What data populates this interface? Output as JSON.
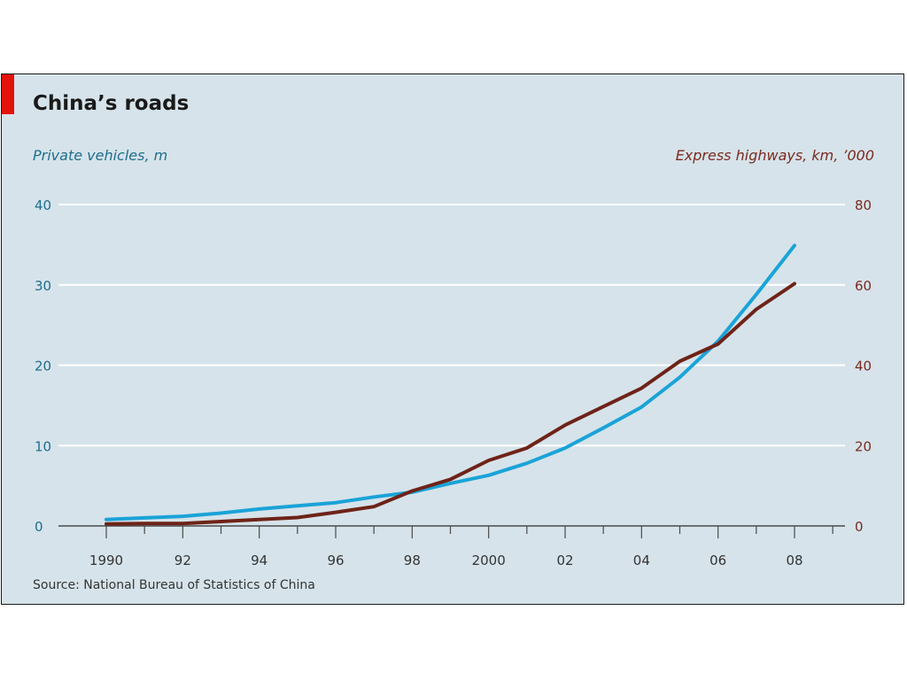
{
  "chart_data": {
    "type": "line",
    "title": "China’s roads",
    "left_axis": {
      "label": "Private vehicles, m",
      "range": [
        0,
        40
      ],
      "ticks": [
        "0",
        "10",
        "20",
        "30",
        "40"
      ],
      "color": "#1f6e8c"
    },
    "right_axis": {
      "label": "Express highways, km, ’000",
      "range": [
        0,
        80
      ],
      "ticks": [
        "0",
        "20",
        "40",
        "60",
        "80"
      ],
      "color": "#7a2a1f"
    },
    "x": [
      1990,
      1991,
      1992,
      1993,
      1994,
      1995,
      1996,
      1997,
      1998,
      1999,
      2000,
      2001,
      2002,
      2003,
      2004,
      2005,
      2006,
      2007,
      2008
    ],
    "x_tick_labels": [
      "1990",
      "92",
      "94",
      "96",
      "98",
      "2000",
      "02",
      "04",
      "06",
      "08"
    ],
    "x_tick_years": [
      1990,
      1992,
      1994,
      1996,
      1998,
      2000,
      2002,
      2004,
      2006,
      2008
    ],
    "series": [
      {
        "axis": "left",
        "color": "#1aa3d8",
        "values": [
          0.8,
          1.0,
          1.2,
          1.6,
          2.1,
          2.5,
          2.9,
          3.6,
          4.2,
          5.3,
          6.3,
          7.8,
          9.7,
          12.2,
          14.8,
          18.5,
          23.0,
          28.8,
          34.9
        ]
      },
      {
        "axis": "right",
        "color": "#6e2318",
        "values": [
          0.5,
          0.6,
          0.6,
          1.1,
          1.6,
          2.1,
          3.4,
          4.8,
          8.7,
          11.6,
          16.3,
          19.4,
          25.1,
          29.7,
          34.3,
          41.0,
          45.3,
          53.9,
          60.3
        ]
      }
    ],
    "grid": true,
    "source": "Source: National Bureau of Statistics of China"
  }
}
